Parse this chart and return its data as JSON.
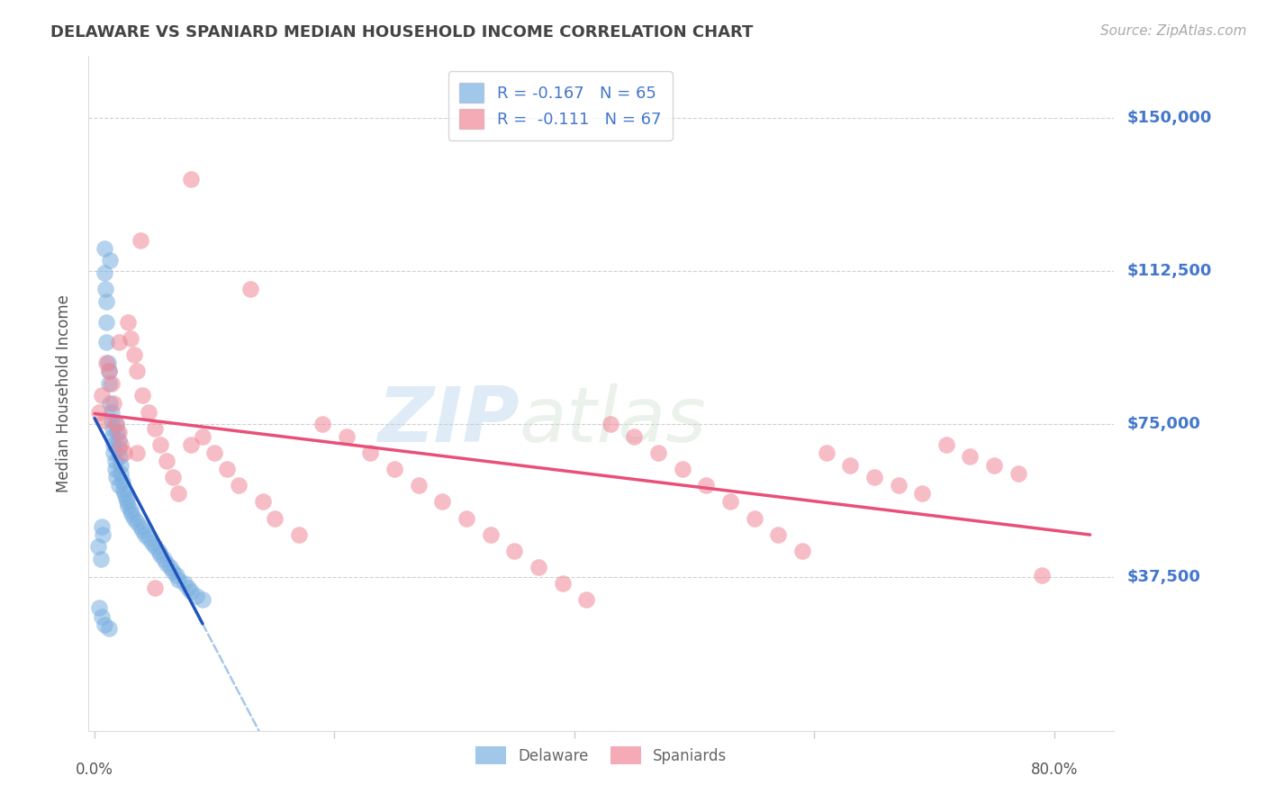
{
  "title": "DELAWARE VS SPANIARD MEDIAN HOUSEHOLD INCOME CORRELATION CHART",
  "source": "Source: ZipAtlas.com",
  "ylabel": "Median Household Income",
  "ytick_values": [
    37500,
    75000,
    112500,
    150000
  ],
  "ytick_labels": [
    "$37,500",
    "$75,000",
    "$112,500",
    "$150,000"
  ],
  "ymin": 0,
  "ymax": 165000,
  "xmin": -0.005,
  "xmax": 0.85,
  "watermark_part1": "ZIP",
  "watermark_part2": "atlas",
  "legend_blue_text": "R = -0.167   N = 65",
  "legend_pink_text": "R =  -0.111   N = 67",
  "blue_color": "#7ab0e0",
  "pink_color": "#f08898",
  "blue_line_color": "#2255bb",
  "pink_line_color": "#e8507a",
  "dashed_line_color": "#a8c8e8",
  "background_color": "#ffffff",
  "grid_color": "#cccccc",
  "title_color": "#444444",
  "ytick_color": "#4477cc",
  "source_color": "#aaaaaa",
  "legend_entry_blue": "Delaware",
  "legend_entry_pink": "Spaniards",
  "blue_x": [
    0.003,
    0.005,
    0.006,
    0.007,
    0.008,
    0.008,
    0.009,
    0.01,
    0.01,
    0.01,
    0.011,
    0.012,
    0.012,
    0.013,
    0.013,
    0.014,
    0.014,
    0.015,
    0.015,
    0.016,
    0.016,
    0.017,
    0.017,
    0.018,
    0.018,
    0.019,
    0.02,
    0.02,
    0.021,
    0.022,
    0.022,
    0.023,
    0.024,
    0.025,
    0.026,
    0.027,
    0.028,
    0.03,
    0.031,
    0.033,
    0.035,
    0.038,
    0.04,
    0.042,
    0.045,
    0.048,
    0.05,
    0.053,
    0.055,
    0.058,
    0.06,
    0.063,
    0.065,
    0.068,
    0.07,
    0.075,
    0.078,
    0.08,
    0.085,
    0.09,
    0.004,
    0.006,
    0.008,
    0.012,
    0.02
  ],
  "blue_y": [
    45000,
    42000,
    50000,
    48000,
    118000,
    112000,
    108000,
    105000,
    100000,
    95000,
    90000,
    88000,
    85000,
    115000,
    80000,
    78000,
    76000,
    74000,
    72000,
    70000,
    68000,
    66000,
    64000,
    62000,
    75000,
    73000,
    71000,
    69000,
    67000,
    65000,
    63000,
    61000,
    59000,
    58000,
    57000,
    56000,
    55000,
    54000,
    53000,
    52000,
    51000,
    50000,
    49000,
    48000,
    47000,
    46000,
    45000,
    44000,
    43000,
    42000,
    41000,
    40000,
    39000,
    38000,
    37000,
    36000,
    35000,
    34000,
    33000,
    32000,
    30000,
    28000,
    26000,
    25000,
    60000
  ],
  "pink_x": [
    0.004,
    0.006,
    0.008,
    0.01,
    0.012,
    0.014,
    0.016,
    0.018,
    0.02,
    0.022,
    0.025,
    0.028,
    0.03,
    0.033,
    0.035,
    0.038,
    0.04,
    0.045,
    0.05,
    0.055,
    0.06,
    0.065,
    0.07,
    0.08,
    0.09,
    0.1,
    0.11,
    0.12,
    0.13,
    0.14,
    0.15,
    0.17,
    0.19,
    0.21,
    0.23,
    0.25,
    0.27,
    0.29,
    0.31,
    0.33,
    0.35,
    0.37,
    0.39,
    0.41,
    0.43,
    0.45,
    0.47,
    0.49,
    0.51,
    0.53,
    0.55,
    0.57,
    0.59,
    0.61,
    0.63,
    0.65,
    0.67,
    0.69,
    0.71,
    0.73,
    0.75,
    0.77,
    0.79,
    0.02,
    0.035,
    0.05,
    0.08
  ],
  "pink_y": [
    78000,
    82000,
    76000,
    90000,
    88000,
    85000,
    80000,
    75000,
    73000,
    70000,
    68000,
    100000,
    96000,
    92000,
    88000,
    120000,
    82000,
    78000,
    74000,
    70000,
    66000,
    62000,
    58000,
    135000,
    72000,
    68000,
    64000,
    60000,
    108000,
    56000,
    52000,
    48000,
    75000,
    72000,
    68000,
    64000,
    60000,
    56000,
    52000,
    48000,
    44000,
    40000,
    36000,
    32000,
    75000,
    72000,
    68000,
    64000,
    60000,
    56000,
    52000,
    48000,
    44000,
    68000,
    65000,
    62000,
    60000,
    58000,
    70000,
    67000,
    65000,
    63000,
    38000,
    95000,
    68000,
    35000,
    70000
  ]
}
